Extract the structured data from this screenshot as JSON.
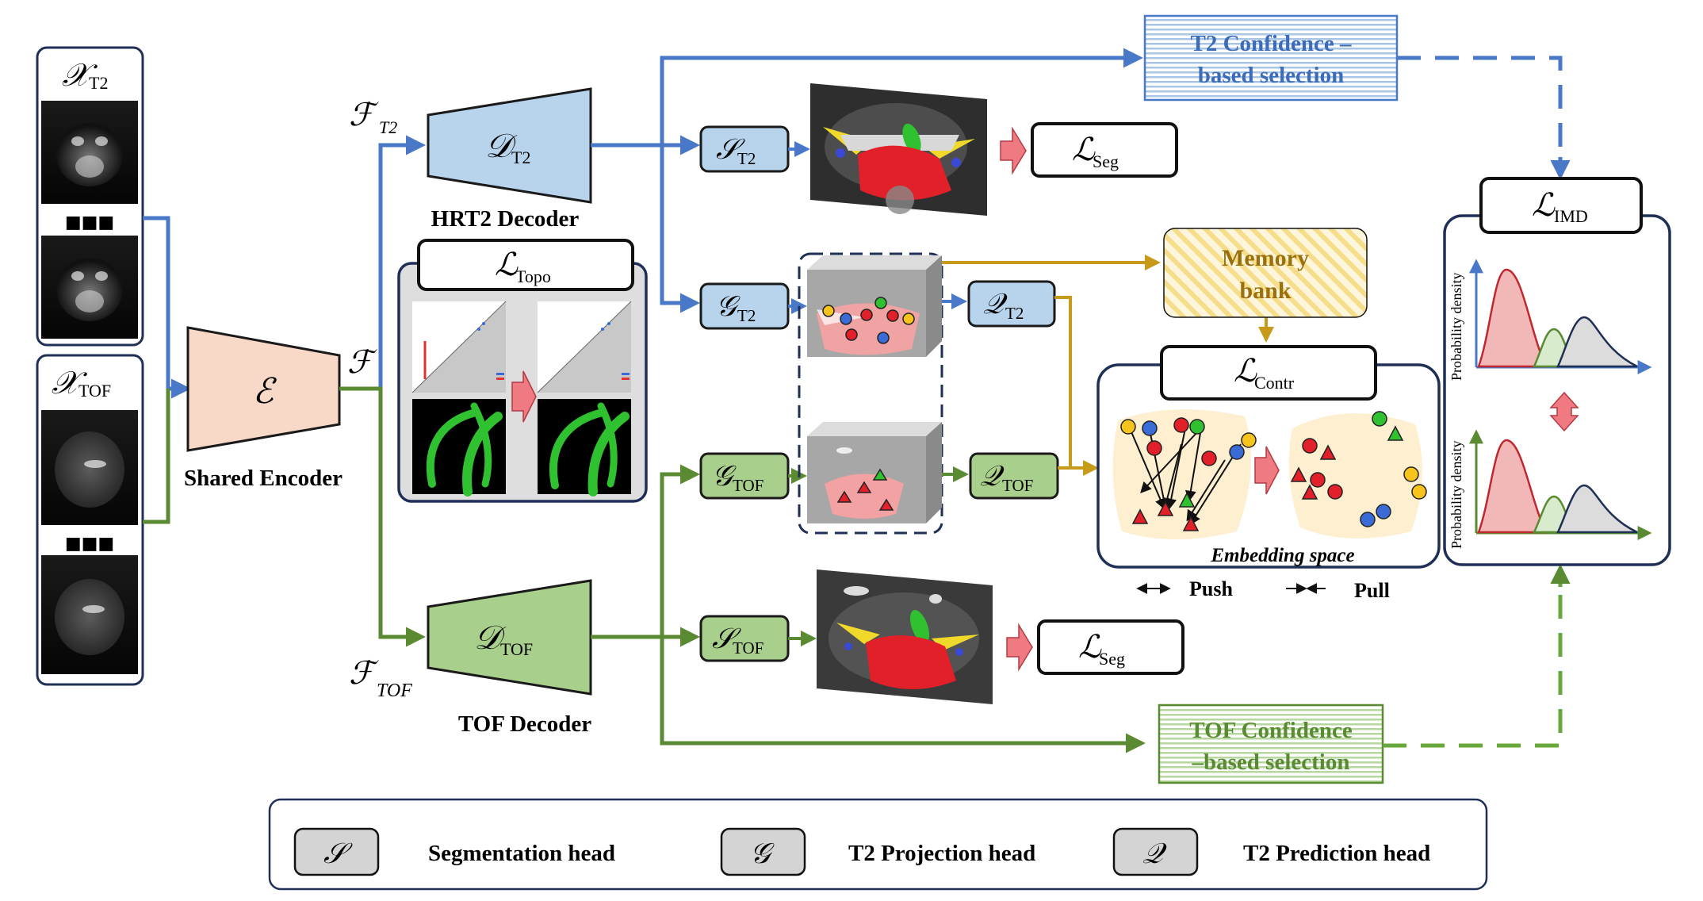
{
  "inputs": {
    "t2_label": "𝒳",
    "t2_sub": "T2",
    "tof_label": "𝒳",
    "tof_sub": "TOF",
    "ellipsis": "■■■"
  },
  "encoder": {
    "symbol": "ℰ",
    "caption": "Shared Encoder",
    "feature": "ℱ"
  },
  "features": {
    "t2_symbol": "ℱ",
    "t2_sub": "T2",
    "tof_symbol": "ℱ",
    "tof_sub": "TOF"
  },
  "decoders": {
    "t2_symbol": "𝒟",
    "t2_sub": "T2",
    "t2_caption": "HRT2 Decoder",
    "tof_symbol": "𝒟",
    "tof_sub": "TOF",
    "tof_caption": "TOF Decoder"
  },
  "topo": {
    "symbol": "ℒ",
    "sub": "Topo"
  },
  "heads": {
    "s_t2": {
      "symbol": "𝒮",
      "sub": "T2"
    },
    "g_t2": {
      "symbol": "𝒢",
      "sub": "T2"
    },
    "g_tof": {
      "symbol": "𝒢",
      "sub": "TOF"
    },
    "s_tof": {
      "symbol": "𝒮",
      "sub": "TOF"
    },
    "q_t2": {
      "symbol": "𝒬",
      "sub": "T2"
    },
    "q_tof": {
      "symbol": "𝒬",
      "sub": "TOF"
    }
  },
  "losses": {
    "seg_t2": {
      "symbol": "ℒ",
      "sub": "Seg"
    },
    "seg_tof": {
      "symbol": "ℒ",
      "sub": "Seg"
    },
    "contr": {
      "symbol": "ℒ",
      "sub": "Contr"
    },
    "imd": {
      "symbol": "ℒ",
      "sub": "IMD"
    }
  },
  "selection": {
    "t2_line1": "T2 Confidence –",
    "t2_line2": "based selection",
    "tof_line1": "TOF Confidence",
    "tof_line2": "–based selection"
  },
  "memory": {
    "line1": "Memory",
    "line2": "bank"
  },
  "embedding": {
    "caption": "Embedding space",
    "push": "Push",
    "pull": "Pull"
  },
  "plots": {
    "ylabel": "Probability density"
  },
  "legend": {
    "s_symbol": "𝒮",
    "s_label": "Segmentation head",
    "g_symbol": "𝒢",
    "g_label": "T2 Projection head",
    "q_symbol": "𝒬",
    "q_label": "T2 Prediction head"
  },
  "colors": {
    "blue_path": "#4a78c8",
    "green_path": "#5a8a32",
    "gold_path": "#c79a1a",
    "t2_fill": "#b8d3ec",
    "tof_fill": "#a9cf8c",
    "encoder_fill": "#f8d9c8",
    "legend_fill": "#d4d4d4",
    "arrow_pink": "#f07a82"
  }
}
